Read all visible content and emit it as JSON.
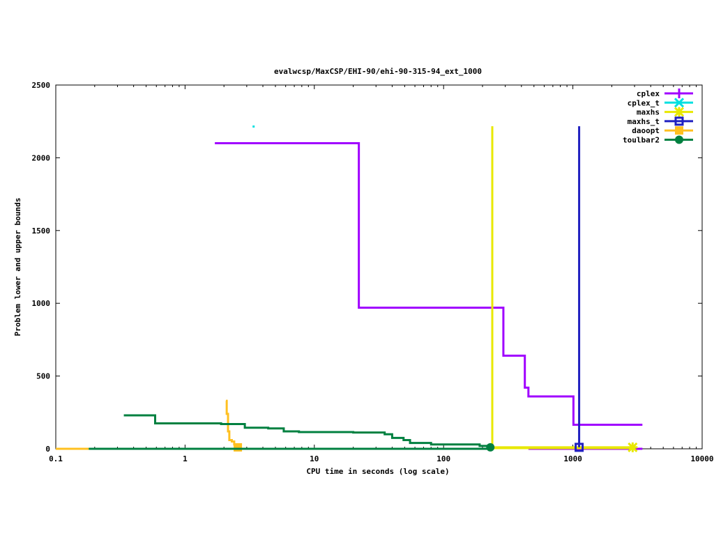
{
  "chart_data": {
    "type": "line",
    "title": "evalwcsp/MaxCSP/EHI-90/ehi-90-315-94_ext_1000",
    "xlabel": "CPU time in seconds (log scale)",
    "ylabel": "Problem lower and upper bounds",
    "xscale": "log",
    "xlim": [
      0.1,
      10000
    ],
    "ylim": [
      0,
      2500
    ],
    "xticks": [
      0.1,
      1,
      10,
      100,
      1000,
      10000
    ],
    "xtick_labels": [
      "0.1",
      "1",
      "10",
      "100",
      "1000",
      "10000"
    ],
    "yticks": [
      0,
      500,
      1000,
      1500,
      2000,
      2500
    ],
    "ytick_labels": [
      "0",
      "500",
      "1000",
      "1500",
      "2000",
      "2500"
    ],
    "grid": false,
    "legend_position": "top-right",
    "series": [
      {
        "name": "cplex",
        "color": "#a000ff",
        "marker": "plus",
        "upper": [
          [
            1.7,
            2100
          ],
          [
            22.1,
            970
          ],
          [
            290,
            640
          ],
          [
            425,
            420
          ],
          [
            453,
            360
          ],
          [
            1010,
            165
          ],
          [
            3450,
            165
          ]
        ],
        "lower": [
          [
            453,
            0
          ],
          [
            3450,
            0
          ]
        ],
        "marker_points": []
      },
      {
        "name": "cplex_t",
        "color": "#00e0e0",
        "marker": "cross",
        "upper": [],
        "lower": [],
        "marker_points": [],
        "dots": [
          [
            3.37,
            2217
          ]
        ]
      },
      {
        "name": "maxhs",
        "color": "#e8e800",
        "marker": "star",
        "upper": [
          [
            238,
            2217
          ],
          [
            238,
            10
          ],
          [
            2900,
            10
          ]
        ],
        "lower": [
          [
            238,
            5
          ],
          [
            2900,
            5
          ]
        ],
        "marker_points": [
          [
            2900,
            10
          ]
        ]
      },
      {
        "name": "maxhs_t",
        "color": "#2020c0",
        "marker": "square",
        "upper": [
          [
            1118,
            2217
          ],
          [
            1118,
            10
          ]
        ],
        "lower": [],
        "marker_points": [
          [
            1118,
            10
          ]
        ]
      },
      {
        "name": "daoopt",
        "color": "#ffc020",
        "marker": "filled-square",
        "upper": [
          [
            2.07,
            330
          ],
          [
            2.1,
            240
          ],
          [
            2.15,
            120
          ],
          [
            2.2,
            60
          ],
          [
            2.3,
            50
          ],
          [
            2.4,
            30
          ],
          [
            2.56,
            10
          ]
        ],
        "lower": [
          [
            0.1,
            0
          ],
          [
            0.18,
            0
          ]
        ],
        "marker_points": [
          [
            2.56,
            10
          ]
        ]
      },
      {
        "name": "toulbar2",
        "color": "#008040",
        "marker": "circle",
        "upper": [
          [
            0.336,
            230
          ],
          [
            0.587,
            175
          ],
          [
            1.9,
            170
          ],
          [
            2.9,
            145
          ],
          [
            4.4,
            140
          ],
          [
            5.8,
            120
          ],
          [
            7.6,
            115
          ],
          [
            20,
            112
          ],
          [
            35,
            100
          ],
          [
            40,
            75
          ],
          [
            49,
            60
          ],
          [
            55,
            40
          ],
          [
            80,
            30
          ],
          [
            190,
            20
          ],
          [
            230,
            10
          ]
        ],
        "lower": [
          [
            0.18,
            0
          ],
          [
            230,
            0
          ]
        ],
        "marker_points": [
          [
            230,
            10
          ]
        ]
      }
    ]
  }
}
